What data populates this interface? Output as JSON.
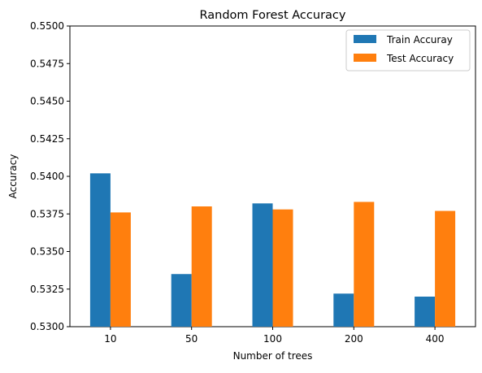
{
  "chart_data": {
    "type": "bar",
    "title": "Random Forest Accuracy",
    "xlabel": "Number of trees",
    "ylabel": "Accuracy",
    "categories": [
      "10",
      "50",
      "100",
      "200",
      "400"
    ],
    "series": [
      {
        "name": "Train Accuray",
        "color": "#1f77b4",
        "values": [
          0.5402,
          0.5335,
          0.5382,
          0.5322,
          0.532
        ]
      },
      {
        "name": "Test Accuracy",
        "color": "#ff7f0e",
        "values": [
          0.5376,
          0.538,
          0.5378,
          0.5383,
          0.5377
        ]
      }
    ],
    "ylim": [
      0.53,
      0.55
    ],
    "yticks": [
      "0.5300",
      "0.5325",
      "0.5350",
      "0.5375",
      "0.5400",
      "0.5425",
      "0.5450",
      "0.5475",
      "0.5500"
    ],
    "grid": false,
    "legend_position": "top-right"
  }
}
